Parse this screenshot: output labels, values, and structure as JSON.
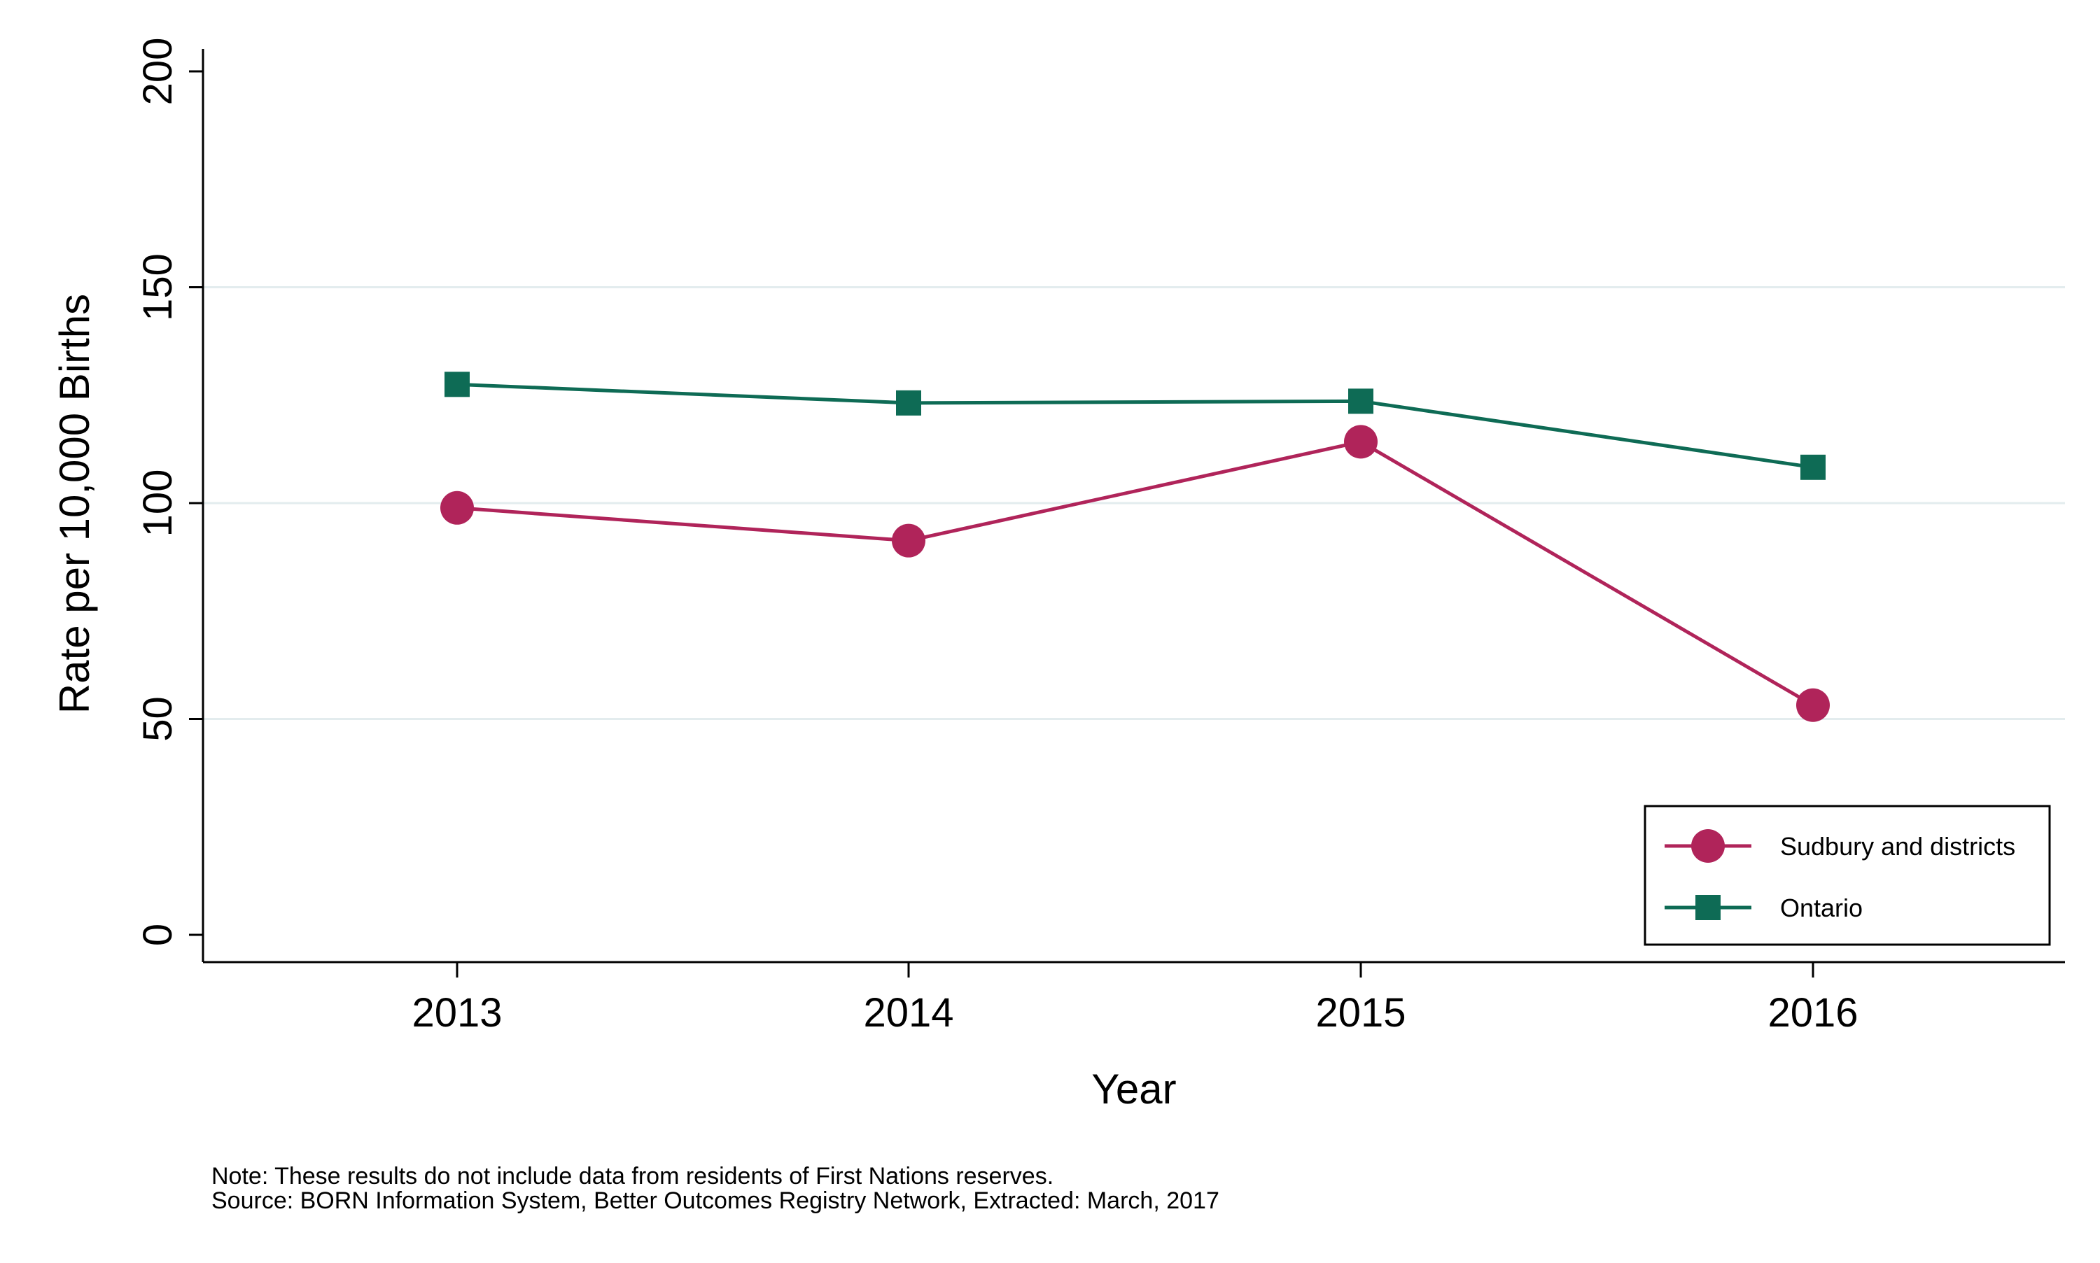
{
  "chart_data": {
    "type": "line",
    "xlabel": "Year",
    "ylabel": "Rate per 10,000 Births",
    "x": [
      "2013",
      "2014",
      "2015",
      "2016"
    ],
    "ylim": [
      0,
      200
    ],
    "yticks": [
      0,
      50,
      100,
      150,
      200
    ],
    "grid": "horizontal",
    "legend_position": "bottom-right",
    "series": [
      {
        "name": "Sudbury and districts",
        "marker": "circle",
        "color": "#b0245a",
        "values": [
          98.9,
          91.3,
          114.2,
          53.2
        ]
      },
      {
        "name": "Ontario",
        "marker": "square",
        "color": "#0e6b55",
        "values": [
          127.5,
          123.2,
          123.6,
          108.3
        ]
      }
    ],
    "notes": [
      "Note: These results do not include data from residents of First Nations reserves.",
      "Source: BORN Information System, Better Outcomes Registry Network, Extracted: March, 2017"
    ]
  },
  "colors": {
    "axis": "#000000",
    "grid": "#e3ecee"
  }
}
